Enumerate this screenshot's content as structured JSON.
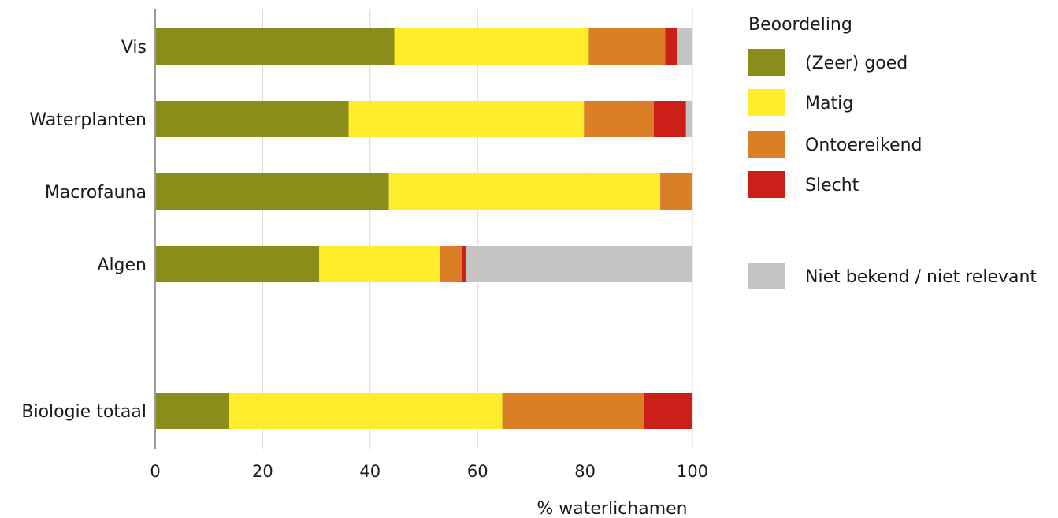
{
  "chart_data": {
    "type": "bar",
    "orientation": "horizontal",
    "stacked": true,
    "categories": [
      "Vis",
      "Waterplanten",
      "Macrofauna",
      "Algen",
      "Biologie totaal"
    ],
    "series": [
      {
        "name": "(Zeer) goed",
        "color": "#8a8d1a",
        "values": [
          44.5,
          36.0,
          43.5,
          30.5,
          13.8
        ]
      },
      {
        "name": "Matig",
        "color": "#ffec2a",
        "values": [
          36.2,
          43.8,
          50.5,
          22.5,
          50.8
        ]
      },
      {
        "name": "Ontoereikend",
        "color": "#db7f27",
        "values": [
          14.2,
          13.0,
          6.0,
          4.0,
          26.3
        ]
      },
      {
        "name": "Slecht",
        "color": "#cc1f1a",
        "values": [
          2.3,
          6.0,
          0.0,
          0.8,
          9.0
        ]
      },
      {
        "name": "Niet bekend / niet relevant",
        "color": "#c4c4c4",
        "values": [
          2.8,
          1.2,
          0.0,
          42.2,
          0.0
        ]
      }
    ],
    "xlabel": "% waterlichamen",
    "ylabel": "",
    "xlim": [
      0,
      100
    ],
    "xticks": [
      "0",
      "20",
      "40",
      "60",
      "80",
      "100"
    ],
    "grid": true,
    "legend": {
      "title": "Beoordeling",
      "placement": "right"
    }
  }
}
